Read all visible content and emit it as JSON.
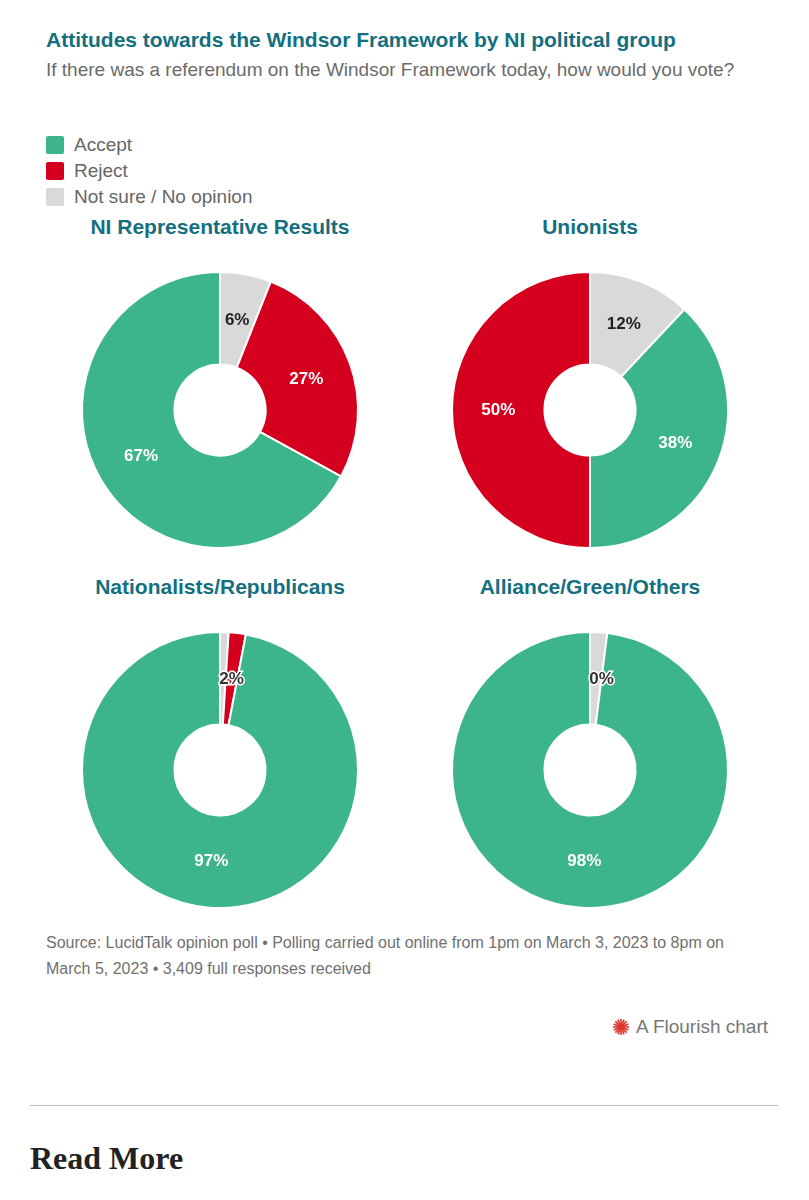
{
  "title": "Attitudes towards the Windsor Framework by NI political group",
  "subtitle": "If there was a referendum on the Windsor Framework today, how would you vote?",
  "legend_entries": [
    {
      "name": "Accept",
      "color": "#3db58a"
    },
    {
      "name": "Reject",
      "color": "#d4001e"
    },
    {
      "name": "Not sure / No opinion",
      "color": "#d9d9d9"
    }
  ],
  "chart_data": [
    {
      "type": "doughnut",
      "title": "NI Representative Results",
      "categories": [
        "Not sure / No opinion",
        "Reject",
        "Accept"
      ],
      "values": [
        6,
        27,
        67
      ],
      "colors": [
        "#d9d9d9",
        "#d4001e",
        "#3db58a"
      ],
      "data_labels": true,
      "value_labels": [
        "6%",
        "27%",
        "67%"
      ]
    },
    {
      "type": "doughnut",
      "title": "Unionists",
      "categories": [
        "Not sure / No opinion",
        "Accept",
        "Reject"
      ],
      "values": [
        12,
        38,
        50
      ],
      "colors": [
        "#d9d9d9",
        "#3db58a",
        "#d4001e"
      ],
      "data_labels": true,
      "value_labels": [
        "12%",
        "38%",
        "50%"
      ]
    },
    {
      "type": "doughnut",
      "title": "Nationalists/Republicans",
      "categories": [
        "Not sure / No opinion",
        "Reject",
        "Accept"
      ],
      "values": [
        1,
        2,
        97
      ],
      "colors": [
        "#d9d9d9",
        "#d4001e",
        "#3db58a"
      ],
      "data_labels": true,
      "value_labels": [
        null,
        "2%",
        "97%"
      ]
    },
    {
      "type": "doughnut",
      "title": "Alliance/Green/Others",
      "categories": [
        "Not sure / No opinion",
        "Reject",
        "Accept"
      ],
      "values": [
        2,
        0,
        98
      ],
      "colors": [
        "#d9d9d9",
        "#d4001e",
        "#3db58a"
      ],
      "data_labels": true,
      "value_labels": [
        null,
        "0%",
        "98%"
      ]
    }
  ],
  "source": "Source: LucidTalk opinion poll • Polling carried out online from 1pm on March 3, 2023 to 8pm on March 5, 2023 • 3,409 full responses received",
  "credit": "A Flourish chart",
  "footer": "Read More"
}
